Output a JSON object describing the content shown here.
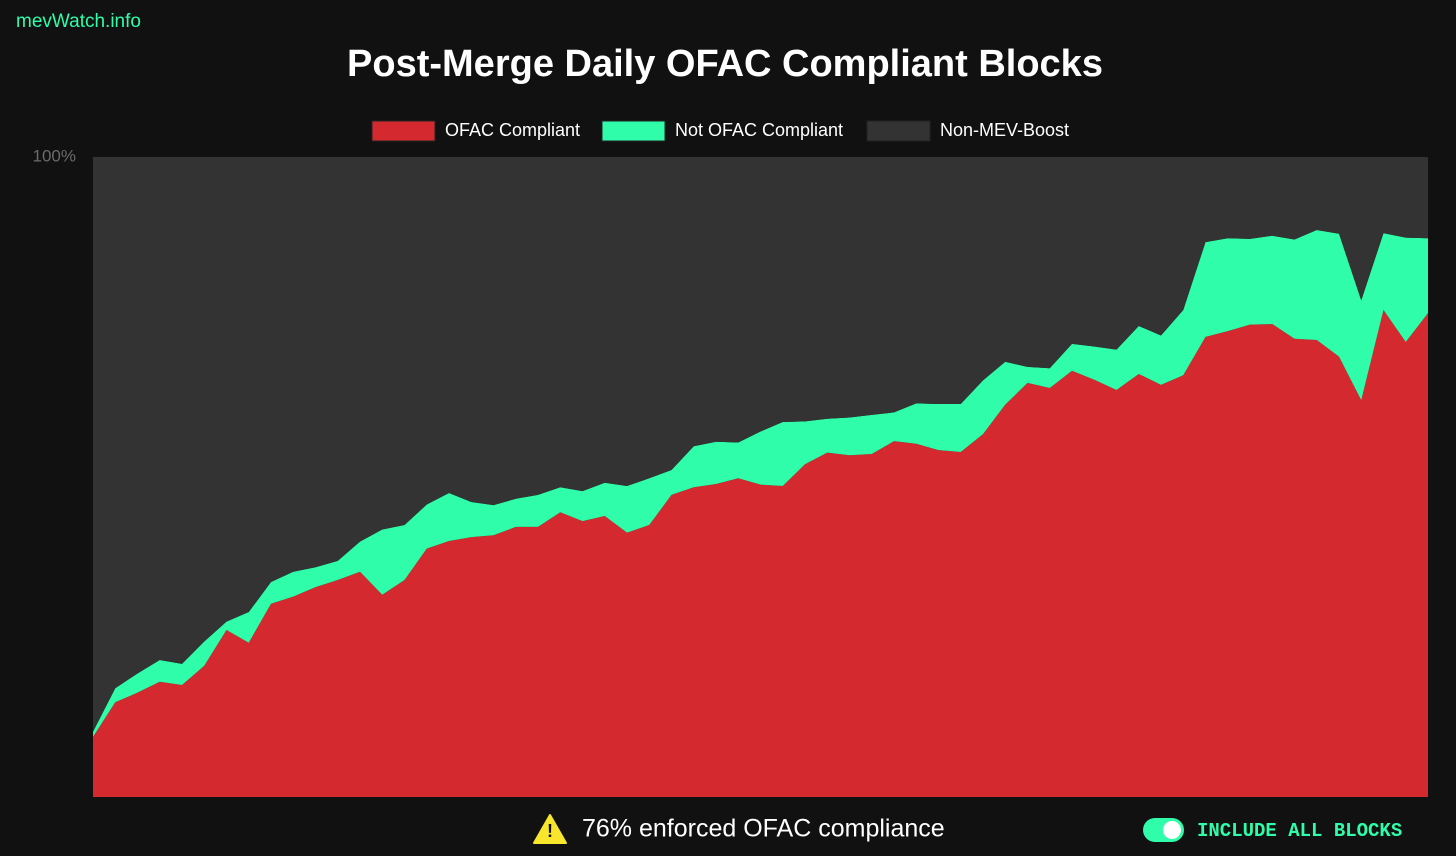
{
  "site": "mevWatch.info",
  "chart_data": {
    "type": "stacked-area",
    "title": "Post-Merge Daily OFAC Compliant Blocks",
    "ylim": [
      0,
      100
    ],
    "yticks": [
      {
        "value": 100,
        "label": "100%"
      }
    ],
    "series": [
      {
        "name": "OFAC Compliant",
        "color": "#d4292f",
        "values": [
          9.4,
          14.8,
          16.3,
          18.0,
          17.5,
          20.5,
          26.1,
          24.1,
          30.2,
          31.3,
          32.8,
          33.9,
          35.2,
          31.6,
          33.9,
          38.8,
          40.0,
          40.6,
          40.9,
          42.2,
          42.2,
          44.5,
          43.1,
          43.9,
          41.3,
          42.5,
          47.2,
          48.4,
          48.9,
          49.8,
          48.8,
          48.6,
          52.0,
          53.8,
          53.4,
          53.6,
          55.6,
          55.2,
          54.2,
          53.9,
          56.7,
          61.3,
          64.7,
          63.9,
          66.6,
          65.2,
          63.6,
          66.1,
          64.4,
          65.9,
          71.9,
          72.8,
          73.8,
          73.9,
          71.6,
          71.4,
          68.8,
          62.0,
          76.1,
          71.1,
          75.6
        ]
      },
      {
        "name": "Not OFAC Compliant",
        "color": "#2ffda9",
        "values": [
          0.8,
          2.2,
          3.0,
          3.4,
          3.3,
          3.8,
          1.3,
          4.8,
          3.4,
          3.9,
          3.1,
          3.0,
          4.7,
          10.2,
          8.6,
          6.9,
          7.5,
          5.5,
          4.7,
          4.4,
          5.0,
          3.9,
          4.7,
          5.2,
          7.3,
          7.3,
          3.9,
          6.4,
          6.6,
          5.6,
          8.3,
          10.0,
          6.7,
          5.3,
          5.9,
          6.1,
          4.5,
          6.3,
          7.2,
          7.5,
          8.4,
          6.7,
          2.5,
          3.1,
          4.2,
          5.2,
          6.3,
          7.5,
          7.7,
          10.2,
          14.8,
          14.5,
          13.4,
          13.8,
          15.5,
          17.2,
          19.2,
          15.6,
          12.0,
          16.3,
          11.7
        ]
      },
      {
        "name": "Non-MEV-Boost",
        "color": "#333333",
        "values": [
          89.8,
          83.0,
          80.7,
          78.6,
          79.2,
          75.7,
          72.6,
          71.1,
          66.4,
          64.8,
          64.1,
          63.1,
          60.1,
          58.2,
          57.5,
          54.3,
          52.5,
          53.9,
          54.4,
          53.4,
          52.8,
          51.6,
          52.2,
          50.9,
          51.4,
          50.2,
          48.9,
          45.2,
          44.5,
          44.6,
          42.9,
          41.4,
          41.3,
          40.9,
          40.7,
          40.3,
          39.9,
          38.5,
          38.6,
          38.6,
          34.9,
          32.0,
          32.8,
          33.0,
          29.2,
          29.6,
          30.1,
          26.4,
          27.9,
          23.9,
          13.3,
          12.7,
          12.8,
          12.3,
          12.9,
          11.4,
          12.0,
          22.4,
          11.9,
          12.6,
          12.7
        ]
      }
    ]
  },
  "footer": {
    "compliance": "76% enforced OFAC compliance",
    "toggle_label": "INCLUDE ALL BLOCKS"
  }
}
